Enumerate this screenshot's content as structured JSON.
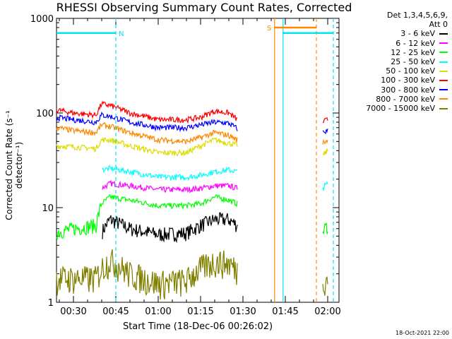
{
  "chart_data": {
    "type": "line",
    "title": "RHESSI Observing Summary Count Rates, Corrected",
    "xlabel": "Start Time (18-Dec-06 00:26:02)",
    "ylabel": "Corrected Count Rate (s⁻¹ detector⁻¹)",
    "y_scale": "log",
    "ylim": [
      1,
      1000
    ],
    "xlim_minutes": [
      24,
      124
    ],
    "x_tick_labels": [
      "00:30",
      "00:45",
      "01:00",
      "01:15",
      "01:30",
      "01:45",
      "02:00"
    ],
    "x_tick_minutes": [
      30,
      45,
      60,
      75,
      90,
      105,
      120
    ],
    "y_tick_labels": [
      "1",
      "10",
      "100",
      "1000"
    ],
    "y_tick_values": [
      1,
      10,
      100,
      1000
    ],
    "legend_header": [
      "Det 1,3,4,5,6,9,",
      "Att 0"
    ],
    "legend_placement": "right",
    "series": [
      {
        "name": "3 - 6 keV",
        "color": "#000000",
        "x": [
          24,
          38,
          40,
          43,
          50,
          60,
          70,
          75,
          80,
          85,
          88,
          91,
          96
        ],
        "y": [
          null,
          null,
          5.5,
          7.5,
          6.0,
          5.2,
          5.4,
          6.5,
          7.5,
          7.5,
          6.5,
          null,
          null
        ]
      },
      {
        "name": "6 - 12 keV",
        "color": "#ff00ff",
        "x": [
          24,
          38,
          40,
          43,
          50,
          60,
          70,
          75,
          80,
          85,
          88,
          91,
          96
        ],
        "y": [
          null,
          null,
          16,
          18,
          17,
          15.5,
          15.5,
          16,
          17,
          17,
          16,
          null,
          null
        ]
      },
      {
        "name": "12 - 25 keV",
        "color": "#00ff00",
        "x": [
          24,
          30,
          38,
          40,
          43,
          50,
          60,
          70,
          75,
          80,
          85,
          88,
          91,
          96,
          118,
          120
        ],
        "y": [
          5.5,
          6.0,
          6.5,
          11,
          13,
          12,
          10.5,
          10.5,
          11,
          13,
          12,
          11,
          null,
          null,
          5.5,
          6.5
        ]
      },
      {
        "name": "25 - 50 keV",
        "color": "#00ffff",
        "x": [
          24,
          38,
          40,
          43,
          50,
          60,
          70,
          75,
          80,
          85,
          88,
          91,
          96,
          118,
          120
        ],
        "y": [
          null,
          null,
          25,
          26,
          24,
          21,
          21,
          22,
          24,
          25,
          24,
          null,
          null,
          16,
          18
        ]
      },
      {
        "name": "50 - 100 keV",
        "color": "#dddd00",
        "x": [
          24,
          30,
          38,
          40,
          43,
          50,
          60,
          70,
          75,
          80,
          85,
          88,
          91,
          96,
          118,
          120
        ],
        "y": [
          45,
          44,
          42,
          52,
          52,
          45,
          38,
          38,
          45,
          52,
          48,
          46,
          null,
          null,
          35,
          40
        ]
      },
      {
        "name": "100 - 300 keV",
        "color": "#ff0000",
        "x": [
          24,
          30,
          38,
          40,
          43,
          50,
          60,
          70,
          75,
          80,
          85,
          88,
          91,
          96,
          118,
          120
        ],
        "y": [
          108,
          100,
          95,
          125,
          120,
          100,
          85,
          85,
          90,
          105,
          100,
          85,
          null,
          null,
          80,
          85
        ]
      },
      {
        "name": "300 - 800 keV",
        "color": "#0000ff",
        "x": [
          24,
          30,
          38,
          40,
          43,
          50,
          60,
          70,
          75,
          80,
          85,
          88,
          91,
          96,
          118,
          120
        ],
        "y": [
          90,
          85,
          80,
          95,
          92,
          80,
          70,
          70,
          75,
          80,
          78,
          68,
          null,
          null,
          62,
          65
        ]
      },
      {
        "name": "800 - 7000 keV",
        "color": "#ff8800",
        "x": [
          24,
          30,
          38,
          40,
          43,
          50,
          60,
          70,
          75,
          80,
          85,
          88,
          91,
          96,
          118,
          120
        ],
        "y": [
          70,
          65,
          62,
          75,
          72,
          62,
          52,
          50,
          55,
          62,
          58,
          52,
          null,
          null,
          48,
          52
        ]
      },
      {
        "name": "7000 - 15000 keV",
        "color": "#808000",
        "x": [
          24,
          30,
          38,
          40,
          43,
          50,
          60,
          70,
          75,
          80,
          85,
          88,
          91,
          96,
          118,
          120
        ],
        "y": [
          1.8,
          1.8,
          1.8,
          2.3,
          2.8,
          2.0,
          1.6,
          1.7,
          2.3,
          2.7,
          2.6,
          2.2,
          null,
          null,
          1.8,
          1.8
        ]
      }
    ],
    "flag_bars": [
      {
        "label": "N",
        "color": "#00e5ee",
        "x_start": 24,
        "x_end": 45
      },
      {
        "label": "S",
        "color": "#ff8800",
        "x_start": 101,
        "x_end": 116
      },
      {
        "label": "",
        "color": "#00e5ee",
        "x_start": 104,
        "x_end": 122
      }
    ],
    "annotation_stamp": "18-Oct-2021 22:00"
  }
}
